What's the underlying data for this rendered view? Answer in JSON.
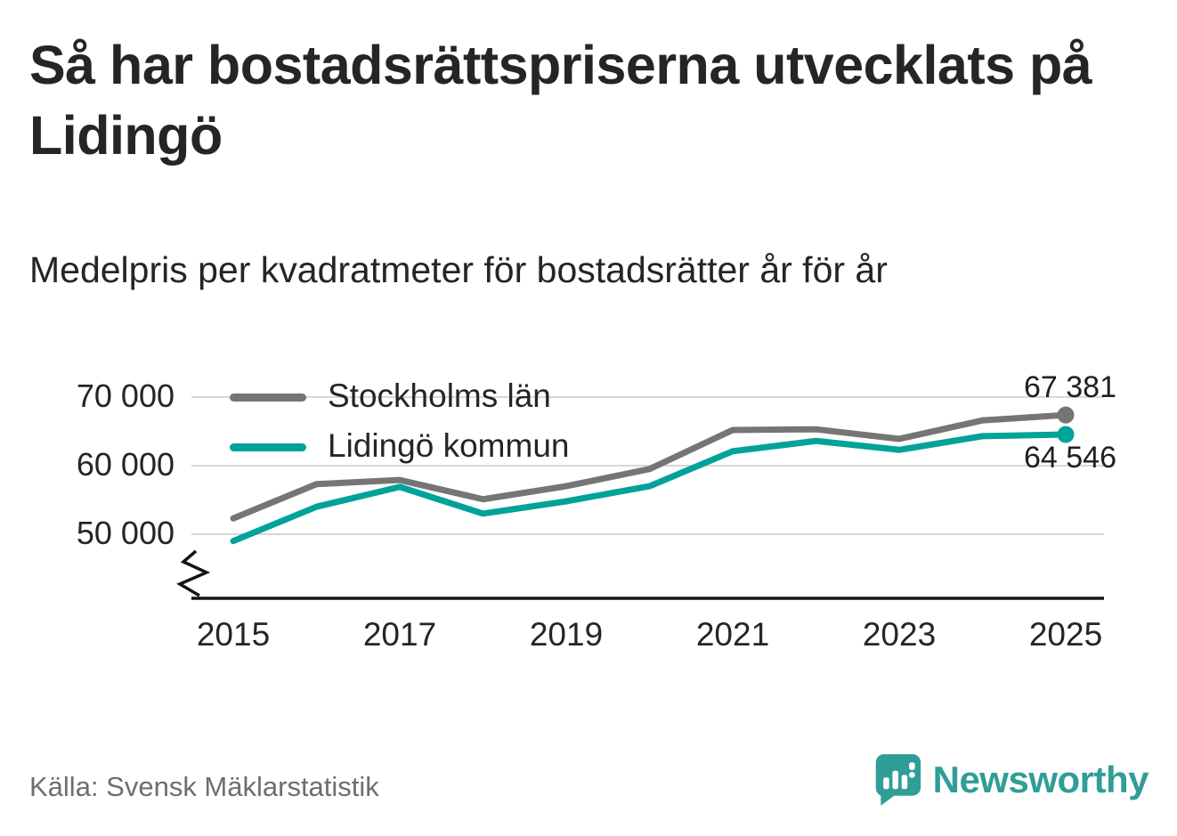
{
  "header": {
    "title": "Så har bostadsrättspriserna utvecklats på Lidingö",
    "subtitle": "Medelpris per kvadratmeter för bostadsrätter år för år"
  },
  "footer": {
    "source": "Källa: Svensk Mäklarstatistik",
    "brand": "Newsworthy"
  },
  "colors": {
    "grid": "#d8d8d8",
    "axis": "#141414",
    "series_stockholm": "#757575",
    "series_lidingo": "#00a29a",
    "brand_teal": "#2f9e96",
    "text": "#252525",
    "muted_text": "#6e6e6e"
  },
  "chart_data": {
    "type": "line",
    "title": "Så har bostadsrättspriserna utvecklats på Lidingö",
    "subtitle": "Medelpris per kvadratmeter för bostadsrätter år för år",
    "x": [
      2015,
      2016,
      2017,
      2018,
      2019,
      2020,
      2021,
      2022,
      2023,
      2024,
      2025
    ],
    "series": [
      {
        "name": "Stockholms län",
        "color": "#757575",
        "values": [
          52300,
          57300,
          57900,
          55100,
          57000,
          59500,
          65200,
          65300,
          63900,
          66600,
          67381
        ],
        "end_label": "67 381"
      },
      {
        "name": "Lidingö kommun",
        "color": "#00a29a",
        "values": [
          49000,
          54000,
          56900,
          53000,
          54800,
          57000,
          62100,
          63600,
          62300,
          64300,
          64546
        ],
        "end_label": "64 546"
      }
    ],
    "yticks": [
      70000,
      60000,
      50000
    ],
    "ytick_labels": [
      "70 000",
      "60 000",
      "50 000"
    ],
    "xticks": [
      2015,
      2017,
      2019,
      2021,
      2023,
      2025
    ],
    "xtick_labels": [
      "2015",
      "2017",
      "2019",
      "2021",
      "2023",
      "2025"
    ],
    "ylim": [
      46500,
      71500
    ],
    "xlabel": "",
    "ylabel": "",
    "grid": "horizontal",
    "axis_break": true,
    "legend_position": "top-left-inside"
  }
}
